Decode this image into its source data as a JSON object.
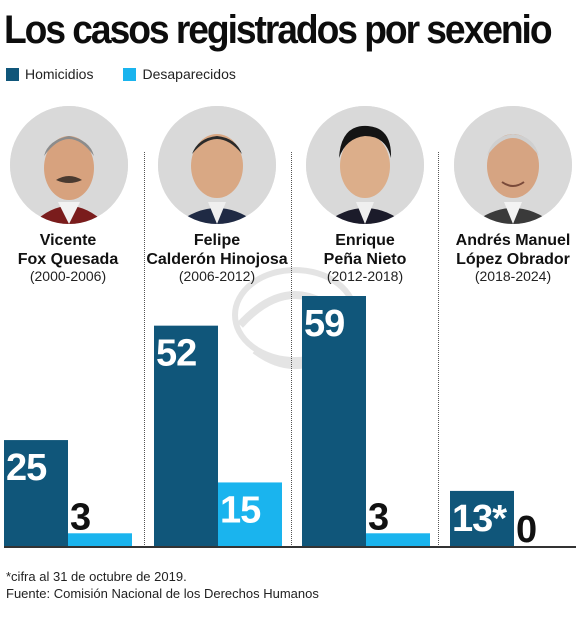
{
  "chart_data": {
    "type": "bar",
    "title": "Los casos registrados por sexenio",
    "categories": [
      "Vicente Fox Quesada (2000-2006)",
      "Felipe Calderón Hinojosa (2006-2012)",
      "Enrique Peña Nieto (2012-2018)",
      "Andrés Manuel López Obrador (2018-2024)"
    ],
    "series": [
      {
        "name": "Homicidios",
        "values": [
          25,
          52,
          59,
          13
        ],
        "labels": [
          "25",
          "52",
          "59",
          "13*"
        ],
        "color": "#10567a"
      },
      {
        "name": "Desaparecidos",
        "values": [
          3,
          15,
          3,
          0
        ],
        "labels": [
          "3",
          "15",
          "3",
          "0"
        ],
        "color": "#1ab4ee"
      }
    ],
    "ylim": [
      0,
      59
    ],
    "legend": "top-left",
    "grid": false
  },
  "people": [
    {
      "name_line1": "Vicente",
      "name_line2": "Fox Quesada",
      "period": "(2000-2006)"
    },
    {
      "name_line1": "Felipe",
      "name_line2": "Calderón Hinojosa",
      "period": "(2006-2012)"
    },
    {
      "name_line1": "Enrique",
      "name_line2": "Peña Nieto",
      "period": "(2012-2018)"
    },
    {
      "name_line1": "Andrés Manuel",
      "name_line2": "López Obrador",
      "period": "(2018-2024)"
    }
  ],
  "footnote": "*cifra al 31 de octubre de 2019.",
  "source": "Fuente: Comisión Nacional de los Derechos Humanos"
}
